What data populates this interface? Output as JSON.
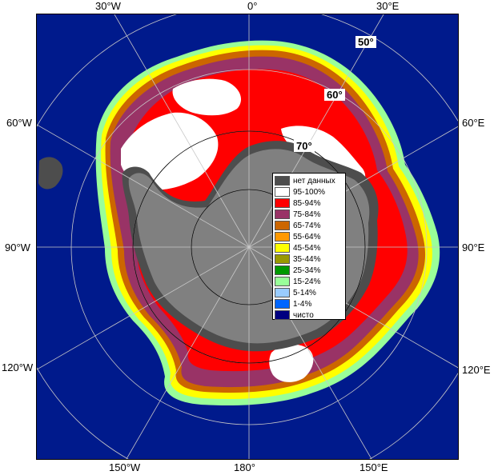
{
  "map": {
    "colors": {
      "ocean": "#001a8c",
      "land_dark": "#4d4d4d",
      "land_grey": "#808080",
      "grid": "#c8c8c8",
      "grid_dark": "#000000"
    },
    "longitude_labels": {
      "top": [
        "30°W",
        "0°",
        "30°E"
      ],
      "left": [
        "60°W",
        "90°W",
        "120°W"
      ],
      "right": [
        "60°E",
        "90°E",
        "120°E"
      ],
      "bottom": [
        "150°W",
        "180°",
        "150°E"
      ]
    },
    "latitude_labels": [
      "50°",
      "60°",
      "70°"
    ]
  },
  "legend": {
    "items": [
      {
        "label": "нет данных",
        "color": "#4d4d4d"
      },
      {
        "label": "95-100%",
        "color": "#ffffff"
      },
      {
        "label": "85-94%",
        "color": "#ff0000"
      },
      {
        "label": "75-84%",
        "color": "#993366"
      },
      {
        "label": "65-74%",
        "color": "#cc6600"
      },
      {
        "label": "55-64%",
        "color": "#ff9900"
      },
      {
        "label": "45-54%",
        "color": "#ffff00"
      },
      {
        "label": "35-44%",
        "color": "#999900"
      },
      {
        "label": "25-34%",
        "color": "#009900"
      },
      {
        "label": "15-24%",
        "color": "#99ff99"
      },
      {
        "label": "5-14%",
        "color": "#99ccff"
      },
      {
        "label": "1-4%",
        "color": "#0066ff"
      },
      {
        "label": "чисто",
        "color": "#000080"
      }
    ]
  }
}
